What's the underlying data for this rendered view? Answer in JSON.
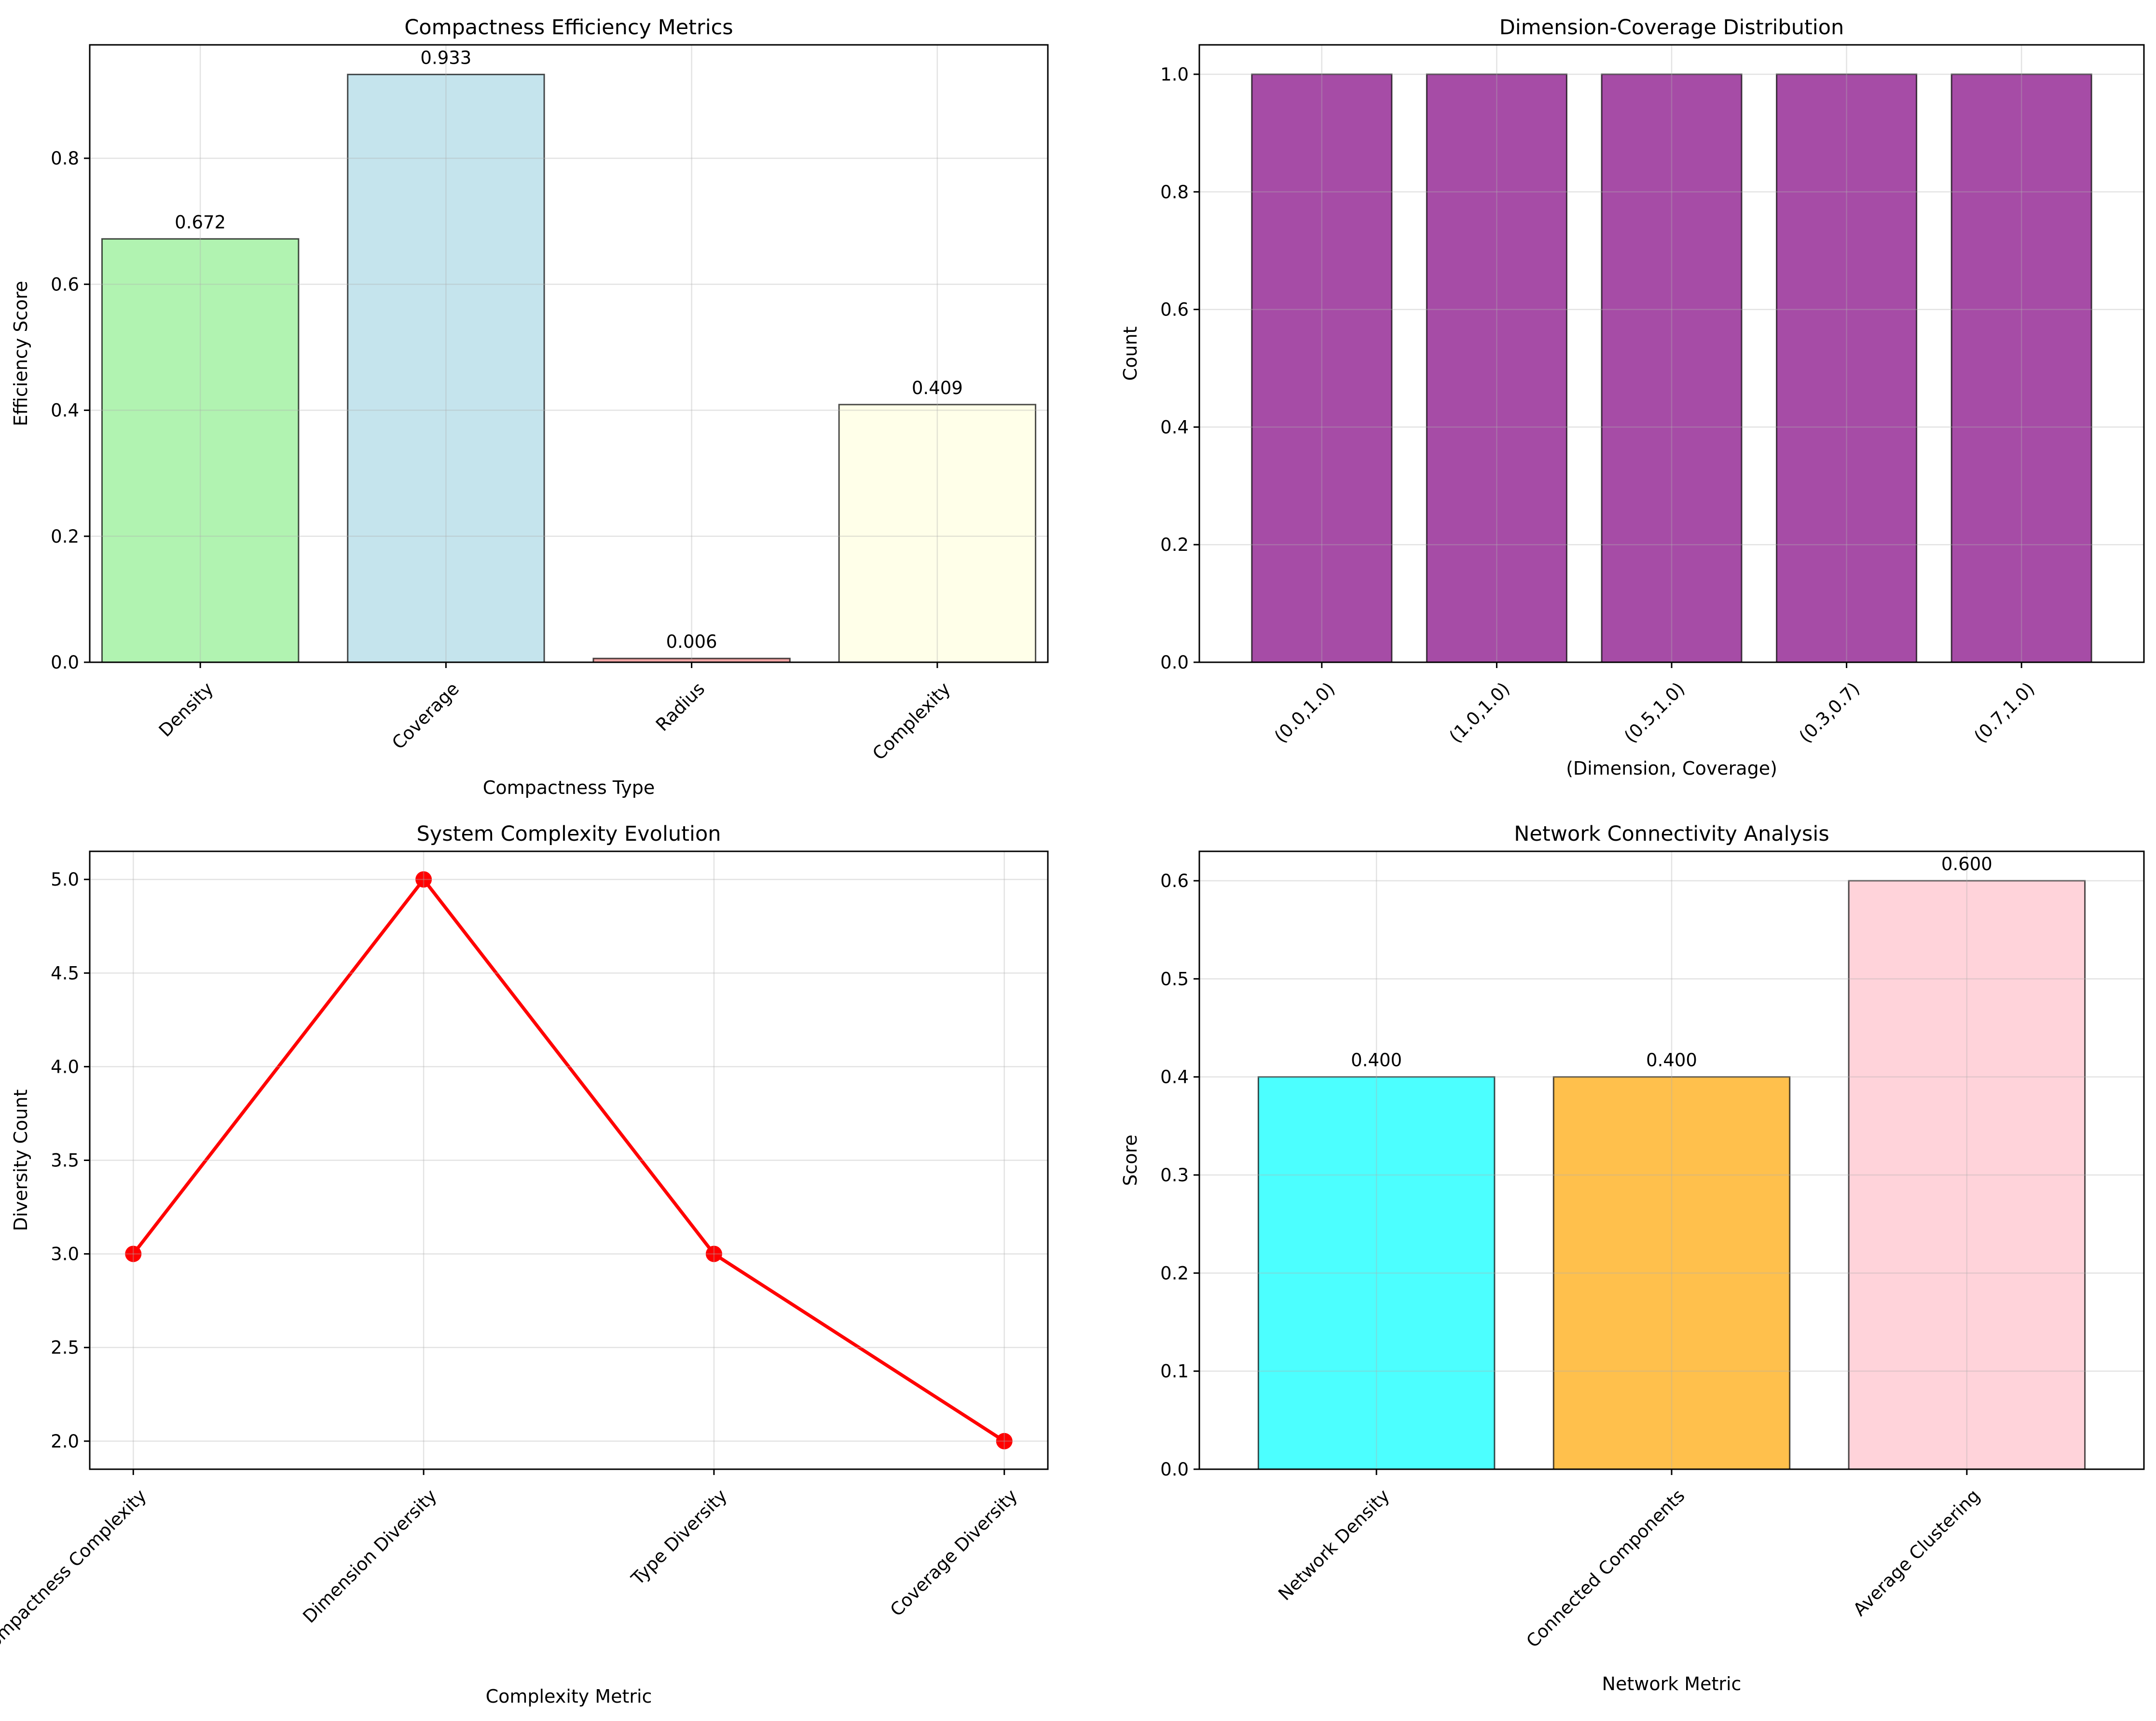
{
  "chart_data": [
    {
      "type": "bar",
      "title": "Compactness Efficiency Metrics",
      "xlabel": "Compactness Type",
      "ylabel": "Efficiency Score",
      "categories": [
        "Density",
        "Coverage",
        "Radius",
        "Complexity"
      ],
      "values": [
        0.672,
        0.933,
        0.006,
        0.409
      ],
      "data_labels": [
        "0.672",
        "0.933",
        "0.006",
        "0.409"
      ],
      "colors": [
        "#90ee90",
        "#add8e6",
        "#f08080",
        "#ffffe0"
      ],
      "ylim": [
        0,
        0.98
      ],
      "yticks": [
        0.0,
        0.2,
        0.4,
        0.6,
        0.8
      ],
      "ytick_labels": [
        "0.0",
        "0.2",
        "0.4",
        "0.6",
        "0.8"
      ],
      "grid": true
    },
    {
      "type": "bar",
      "title": "Dimension-Coverage Distribution",
      "xlabel": "(Dimension, Coverage)",
      "ylabel": "Count",
      "categories": [
        "(0.0,1.0)",
        "(1.0,1.0)",
        "(0.5,1.0)",
        "(0.3,0.7)",
        "(0.7,1.0)"
      ],
      "values": [
        1,
        1,
        1,
        1,
        1
      ],
      "colors": [
        "#800080",
        "#800080",
        "#800080",
        "#800080",
        "#800080"
      ],
      "ylim": [
        0,
        1.05
      ],
      "yticks": [
        0.0,
        0.2,
        0.4,
        0.6,
        0.8,
        1.0
      ],
      "ytick_labels": [
        "0.0",
        "0.2",
        "0.4",
        "0.6",
        "0.8",
        "1.0"
      ],
      "grid": true
    },
    {
      "type": "line",
      "title": "System Complexity Evolution",
      "xlabel": "Complexity Metric",
      "ylabel": "Diversity Count",
      "categories": [
        "Compactness Complexity",
        "Dimension Diversity",
        "Type Diversity",
        "Coverage Diversity"
      ],
      "values": [
        3,
        5,
        3,
        2
      ],
      "color": "#ff0000",
      "ylim": [
        1.85,
        5.15
      ],
      "yticks": [
        2.0,
        2.5,
        3.0,
        3.5,
        4.0,
        4.5,
        5.0
      ],
      "ytick_labels": [
        "2.0",
        "2.5",
        "3.0",
        "3.5",
        "4.0",
        "4.5",
        "5.0"
      ],
      "grid": true
    },
    {
      "type": "bar",
      "title": "Network Connectivity Analysis",
      "xlabel": "Network Metric",
      "ylabel": "Score",
      "categories": [
        "Network Density",
        "Connected Components",
        "Average Clustering"
      ],
      "values": [
        0.4,
        0.4,
        0.6
      ],
      "data_labels": [
        "0.400",
        "0.400",
        "0.600"
      ],
      "colors": [
        "#00ffff",
        "#ffa500",
        "#ffc0cb"
      ],
      "ylim": [
        0,
        0.63
      ],
      "yticks": [
        0.0,
        0.1,
        0.2,
        0.3,
        0.4,
        0.5,
        0.6
      ],
      "ytick_labels": [
        "0.0",
        "0.1",
        "0.2",
        "0.3",
        "0.4",
        "0.5",
        "0.6"
      ],
      "grid": true
    }
  ]
}
